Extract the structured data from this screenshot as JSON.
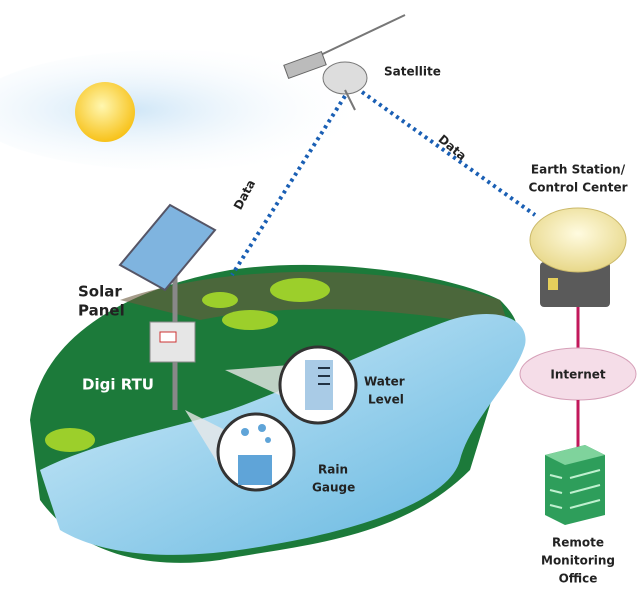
{
  "satellite": {
    "label": "Satellite"
  },
  "links": [
    {
      "label": "Data"
    },
    {
      "label": "Data"
    }
  ],
  "earth_station": {
    "label": [
      "Earth Station/",
      "Control Center"
    ]
  },
  "solar_panel": {
    "label": [
      "Solar",
      "Panel"
    ]
  },
  "rtu": {
    "label": "Digi RTU"
  },
  "water_level": {
    "label": [
      "Water",
      "Level"
    ]
  },
  "rain_gauge": {
    "label": [
      "Rain",
      "Gauge"
    ]
  },
  "internet": {
    "label": "Internet"
  },
  "office": {
    "label": [
      "Remote",
      "Monitoring",
      "Office"
    ]
  }
}
